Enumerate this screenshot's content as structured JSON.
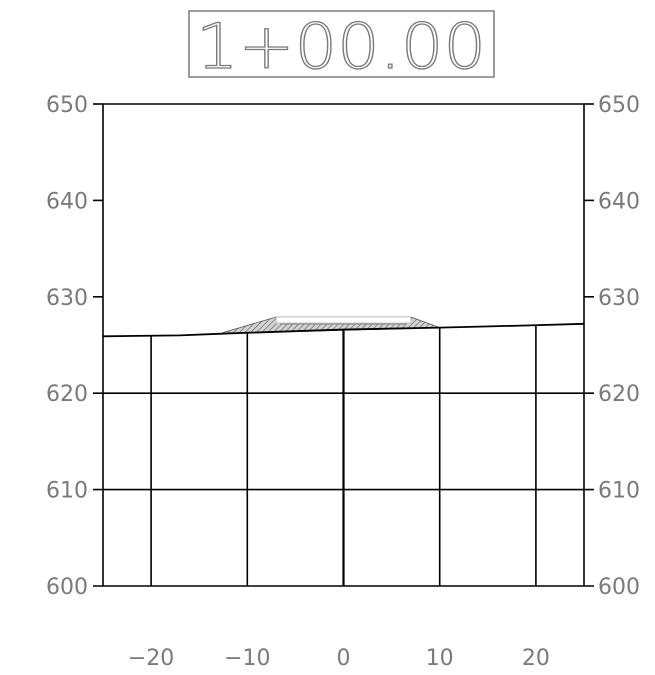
{
  "title": "1+00.00",
  "colors": {
    "grid": "#000000",
    "label": "#7a7a7a",
    "title_box": "#7a7a7a",
    "road_fill": "#d4d4d4",
    "road_hatch": "#555555",
    "pavement": "#ffffff"
  },
  "y_tick_labels": [
    "650",
    "640",
    "630",
    "620",
    "610",
    "600"
  ],
  "x_tick_labels": [
    "−20",
    "−10",
    "0",
    "10",
    "20"
  ],
  "chart_data": {
    "type": "line",
    "title": "1+00.00",
    "xlim": [
      -25,
      25
    ],
    "ylim": [
      600,
      650
    ],
    "x_ticks": [
      -20,
      -10,
      0,
      10,
      20
    ],
    "y_ticks": [
      600,
      610,
      620,
      630,
      640,
      650
    ],
    "grid": true,
    "series": [
      {
        "role": "existing-ground",
        "x": [
          -25,
          -17,
          -12,
          0,
          10,
          18,
          25
        ],
        "y": [
          625.9,
          626.0,
          626.2,
          626.6,
          626.8,
          627.0,
          627.2
        ]
      },
      {
        "role": "proposed-road-section",
        "x": [
          -12.5,
          -7,
          7,
          10
        ],
        "y": [
          626.3,
          627.9,
          627.9,
          626.8
        ]
      }
    ]
  }
}
